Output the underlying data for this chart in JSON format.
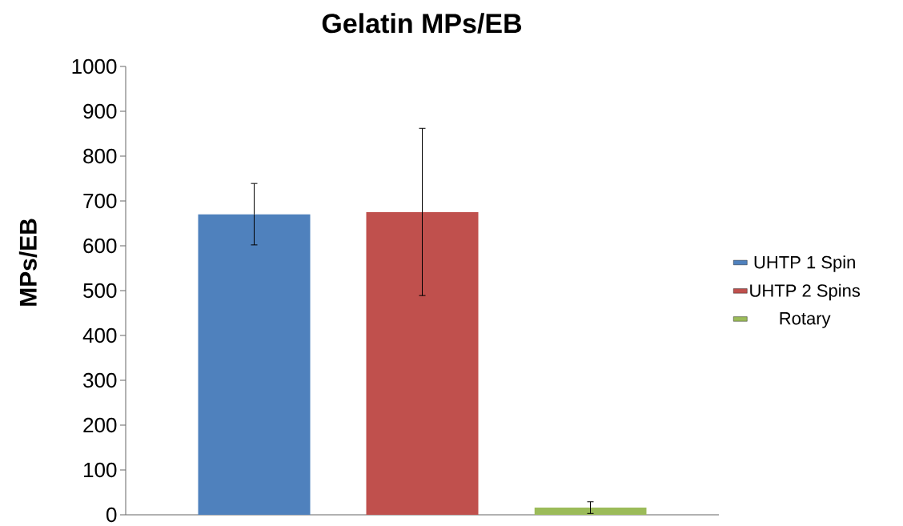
{
  "chart_data": {
    "type": "bar",
    "title": "Gelatin MPs/EB",
    "ylabel": "MPs/EB",
    "categories": [
      null
    ],
    "series": [
      {
        "name": "UHTP 1 Spin",
        "color": "#4f81bd",
        "values": [
          670
        ],
        "errors": [
          [
            602,
            739
          ]
        ]
      },
      {
        "name": "UHTP 2 Spins",
        "color": "#c0504d",
        "values": [
          675
        ],
        "errors": [
          [
            489,
            862
          ]
        ]
      },
      {
        "name": "Rotary",
        "color": "#9bbb59",
        "values": [
          16
        ],
        "errors": [
          [
            3,
            29
          ]
        ]
      }
    ],
    "ylim": [
      0,
      1000
    ],
    "yticks": [
      0,
      100,
      200,
      300,
      400,
      500,
      600,
      700,
      800,
      900,
      1000
    ],
    "grid": false,
    "legend": "right"
  }
}
